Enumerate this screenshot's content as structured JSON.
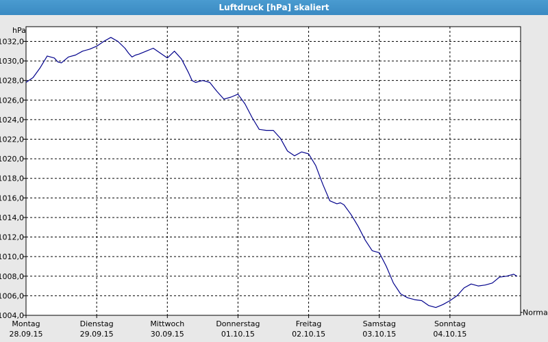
{
  "window": {
    "title": "Luftdruck [hPa] skaliert"
  },
  "chart_data": {
    "type": "line",
    "ylabel": "hPa",
    "ylim": [
      1004,
      1033.5
    ],
    "y_ticks": [
      "1004,0",
      "1006,0",
      "1008,0",
      "1010,0",
      "1012,0",
      "1014,0",
      "1016,0",
      "1018,0",
      "1020,0",
      "1022,0",
      "1024,0",
      "1026,0",
      "1028,0",
      "1030,0",
      "1032,0"
    ],
    "y_tick_values": [
      1004,
      1006,
      1008,
      1010,
      1012,
      1014,
      1016,
      1018,
      1020,
      1022,
      1024,
      1026,
      1028,
      1030,
      1032
    ],
    "x_days": [
      {
        "day": "Montag",
        "date": "28.09.15"
      },
      {
        "day": "Dienstag",
        "date": "29.09.15"
      },
      {
        "day": "Mittwoch",
        "date": "30.09.15"
      },
      {
        "day": "Donnerstag",
        "date": "01.10.15"
      },
      {
        "day": "Freitag",
        "date": "02.10.15"
      },
      {
        "day": "Samstag",
        "date": "03.10.15"
      },
      {
        "day": "Sonntag",
        "date": "04.10.15"
      }
    ],
    "xlim": [
      0,
      7
    ],
    "grid": true,
    "normal_label": "Normal",
    "normal_value": 1004.3,
    "series": [
      {
        "color": "#00008b",
        "x": [
          0,
          0.1,
          0.2,
          0.3,
          0.4,
          0.45,
          0.5,
          0.6,
          0.7,
          0.8,
          0.9,
          1.0,
          1.1,
          1.2,
          1.3,
          1.4,
          1.45,
          1.5,
          1.55,
          1.6,
          1.7,
          1.8,
          1.9,
          2.0,
          2.1,
          2.2,
          2.3,
          2.35,
          2.4,
          2.5,
          2.6,
          2.7,
          2.8,
          2.9,
          3.0,
          3.1,
          3.2,
          3.3,
          3.4,
          3.5,
          3.6,
          3.7,
          3.8,
          3.9,
          4.0,
          4.1,
          4.2,
          4.3,
          4.4,
          4.45,
          4.5,
          4.6,
          4.7,
          4.8,
          4.9,
          5.0,
          5.1,
          5.2,
          5.3,
          5.4,
          5.5,
          5.6,
          5.7,
          5.8,
          5.9,
          6.0,
          6.1,
          6.2,
          6.3,
          6.4,
          6.5,
          6.6,
          6.7,
          6.8,
          6.9,
          6.95
        ],
        "values": [
          1027.8,
          1028.3,
          1029.3,
          1030.5,
          1030.3,
          1029.9,
          1029.8,
          1030.4,
          1030.6,
          1031.0,
          1031.2,
          1031.5,
          1032.0,
          1032.4,
          1032.0,
          1031.3,
          1030.8,
          1030.4,
          1030.6,
          1030.7,
          1031.0,
          1031.3,
          1030.8,
          1030.3,
          1031.0,
          1030.2,
          1028.8,
          1028.0,
          1027.8,
          1028.0,
          1027.8,
          1026.9,
          1026.1,
          1026.3,
          1026.6,
          1025.6,
          1024.2,
          1023.0,
          1022.9,
          1022.9,
          1022.1,
          1020.8,
          1020.3,
          1020.7,
          1020.5,
          1019.3,
          1017.4,
          1015.7,
          1015.4,
          1015.5,
          1015.3,
          1014.3,
          1013.1,
          1011.7,
          1010.6,
          1010.4,
          1009.0,
          1007.3,
          1006.2,
          1005.8,
          1005.6,
          1005.5,
          1005.0,
          1004.8,
          1005.1,
          1005.5,
          1006.0,
          1006.8,
          1007.2,
          1007.0,
          1007.1,
          1007.3,
          1007.9,
          1008.0,
          1008.2,
          1008.0
        ]
      }
    ]
  }
}
